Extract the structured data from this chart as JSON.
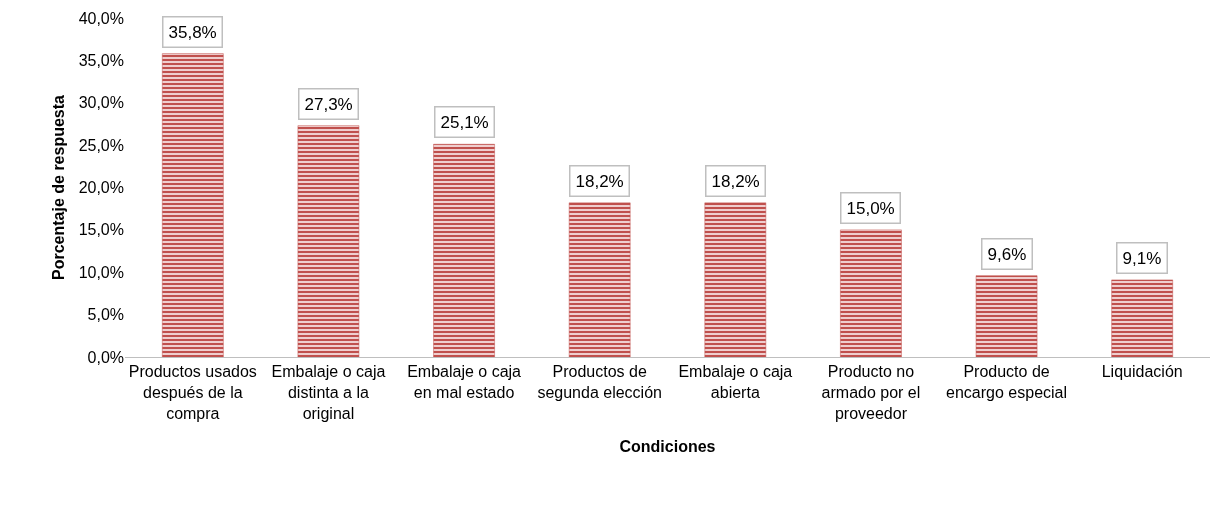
{
  "chart_data": {
    "type": "bar",
    "xlabel": "Condiciones",
    "ylabel": "Porcentaje de respuesta",
    "categories": [
      "Productos usados después de la compra",
      "Embalaje o caja distinta a la original",
      "Embalaje o caja en mal estado",
      "Productos de segunda elección",
      "Embalaje o caja abierta",
      "Producto no armado por el proveedor",
      "Producto de encargo especial",
      "Liquidación"
    ],
    "values": [
      35.8,
      27.3,
      25.1,
      18.2,
      18.2,
      15.0,
      9.6,
      9.1
    ],
    "value_labels": [
      "35,8%",
      "27,3%",
      "25,1%",
      "18,2%",
      "18,2%",
      "15,0%",
      "9,6%",
      "9,1%"
    ],
    "color": "#c0504d",
    "ylim": [
      0,
      40
    ],
    "yticks": [
      {
        "value": 0,
        "label": "0,0%"
      },
      {
        "value": 5,
        "label": "5,0%"
      },
      {
        "value": 10,
        "label": "10,0%"
      },
      {
        "value": 15,
        "label": "15,0%"
      },
      {
        "value": 20,
        "label": "20,0%"
      },
      {
        "value": 25,
        "label": "25,0%"
      },
      {
        "value": 30,
        "label": "30,0%"
      },
      {
        "value": 35,
        "label": "35,0%"
      },
      {
        "value": 40,
        "label": "40,0%"
      }
    ],
    "grid": false
  }
}
